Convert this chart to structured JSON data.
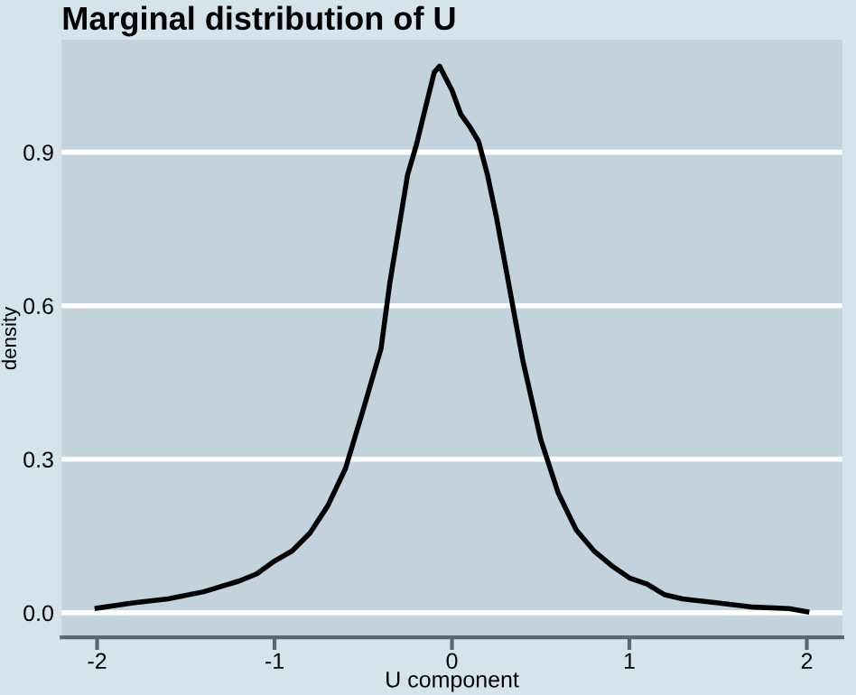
{
  "chart_data": {
    "type": "line",
    "title": "Marginal distribution of U",
    "xlabel": "U component",
    "ylabel": "density",
    "series": [
      {
        "color": "#000000",
        "x": [
          -2,
          -1.8,
          -1.6,
          -1.4,
          -1.2,
          -1.1,
          -1.0,
          -0.9,
          -0.8,
          -0.7,
          -0.6,
          -0.5,
          -0.4,
          -0.35,
          -0.3,
          -0.25,
          -0.2,
          -0.15,
          -0.1,
          -0.07,
          0,
          0.05,
          0.1,
          0.15,
          0.2,
          0.25,
          0.3,
          0.35,
          0.4,
          0.5,
          0.6,
          0.7,
          0.8,
          0.9,
          1.0,
          1.1,
          1.2,
          1.3,
          1.5,
          1.7,
          1.9,
          2.0
        ],
        "values": [
          0.009,
          0.019,
          0.027,
          0.041,
          0.062,
          0.076,
          0.101,
          0.121,
          0.156,
          0.209,
          0.282,
          0.397,
          0.516,
          0.645,
          0.75,
          0.856,
          0.915,
          0.986,
          1.056,
          1.068,
          1.021,
          0.974,
          0.95,
          0.921,
          0.856,
          0.774,
          0.68,
          0.586,
          0.492,
          0.339,
          0.233,
          0.162,
          0.121,
          0.092,
          0.068,
          0.056,
          0.035,
          0.027,
          0.019,
          0.011,
          0.008,
          0.002
        ]
      }
    ],
    "xlim": [
      -2.2,
      2.2
    ],
    "ylim": [
      -0.048,
      1.12
    ],
    "xticks": [
      -2,
      -1,
      0,
      1,
      2
    ],
    "yticks": [
      {
        "value": 0,
        "label": "0.0"
      },
      0.3,
      0.6,
      0.9
    ],
    "grid": "y",
    "line_style": "solid"
  }
}
